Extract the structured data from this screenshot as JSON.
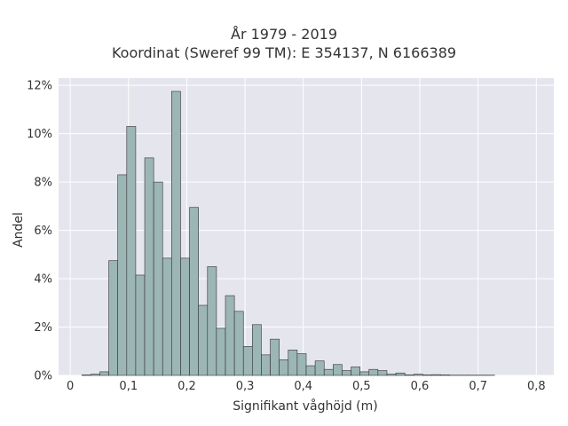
{
  "chart_data": {
    "type": "bar",
    "title": "År 1979 - 2019",
    "subtitle": "Koordinat (Sweref 99 TM): E 354137, N 6166389",
    "xlabel": "Signifikant våghöjd (m)",
    "ylabel": "Andel",
    "xlim": [
      -0.02,
      0.83
    ],
    "ylim": [
      0,
      12.3
    ],
    "xticks": [
      0,
      0.1,
      0.2,
      0.3,
      0.4,
      0.5,
      0.6,
      0.7,
      0.8
    ],
    "xtick_labels": [
      "0",
      "0,1",
      "0,2",
      "0,3",
      "0,4",
      "0,5",
      "0,6",
      "0,7",
      "0,8"
    ],
    "yticks": [
      0,
      2,
      4,
      6,
      8,
      10,
      12
    ],
    "ytick_labels": [
      "0%",
      "2%",
      "4%",
      "6%",
      "8%",
      "10%",
      "12%"
    ],
    "bin_width": 0.0154,
    "bin_start": 0.02,
    "values": [
      0.02,
      0.05,
      0.15,
      4.75,
      8.3,
      10.3,
      4.15,
      9.0,
      8.0,
      4.85,
      11.75,
      4.85,
      6.95,
      2.9,
      4.5,
      1.95,
      3.3,
      2.65,
      1.2,
      2.1,
      0.85,
      1.5,
      0.65,
      1.05,
      0.9,
      0.4,
      0.6,
      0.25,
      0.45,
      0.2,
      0.35,
      0.15,
      0.25,
      0.2,
      0.05,
      0.1,
      0.02,
      0.05,
      0.02,
      0.03,
      0.02,
      0.01,
      0.01,
      0.01,
      0.01,
      0.01
    ],
    "grid": true,
    "colors": {
      "bar": "#9cb5b5",
      "edge": "#333333",
      "background": "#e5e5ee",
      "grid": "#ffffff"
    }
  }
}
